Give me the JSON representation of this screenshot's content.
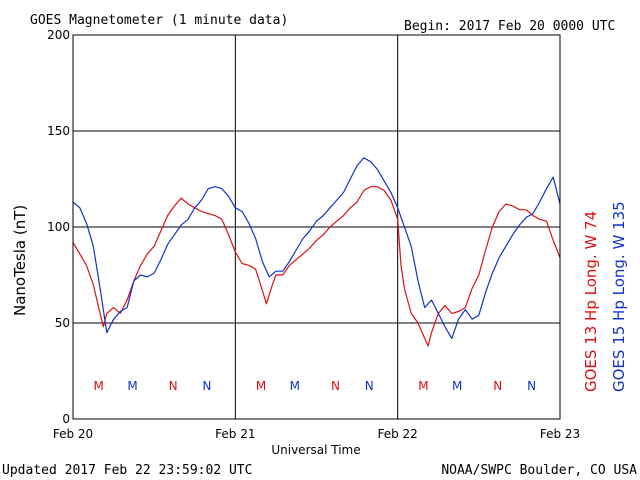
{
  "header": {
    "title": "GOES Magnetometer (1 minute data)",
    "begin": "Begin:  2017 Feb 20 0000 UTC"
  },
  "footer": {
    "updated": "Updated 2017 Feb 22 23:59:02 UTC",
    "credit": "NOAA/SWPC Boulder, CO USA"
  },
  "colors": {
    "goes13": "#dd1111",
    "goes15": "#1133cc",
    "grid": "#000000"
  },
  "chart_data": {
    "type": "line",
    "title": "GOES Magnetometer (1 minute data)",
    "xlabel": "Universal Time",
    "ylabel": "NanoTesla (nT)",
    "ylim": [
      0,
      200
    ],
    "xlim": [
      0,
      72
    ],
    "x_unit": "hours since 2017 Feb 20 0000 UTC",
    "x_ticks": [
      {
        "x": 0,
        "label": "Feb 20"
      },
      {
        "x": 24,
        "label": "Feb 21"
      },
      {
        "x": 48,
        "label": "Feb 22"
      },
      {
        "x": 72,
        "label": "Feb 23"
      }
    ],
    "y_ticks": [
      0,
      50,
      100,
      150,
      200
    ],
    "y_tick_labels": [
      "0",
      "50",
      "100",
      "150",
      "200"
    ],
    "grid": true,
    "legend_position": "right, vertical",
    "markers": [
      {
        "x": 3.8,
        "label": "M",
        "series": 0
      },
      {
        "x": 8.8,
        "label": "M",
        "series": 1
      },
      {
        "x": 14.8,
        "label": "N",
        "series": 0
      },
      {
        "x": 19.8,
        "label": "N",
        "series": 1
      },
      {
        "x": 27.8,
        "label": "M",
        "series": 0
      },
      {
        "x": 32.8,
        "label": "M",
        "series": 1
      },
      {
        "x": 38.8,
        "label": "N",
        "series": 0
      },
      {
        "x": 43.8,
        "label": "N",
        "series": 1
      },
      {
        "x": 51.8,
        "label": "M",
        "series": 0
      },
      {
        "x": 56.8,
        "label": "M",
        "series": 1
      },
      {
        "x": 62.8,
        "label": "N",
        "series": 0
      },
      {
        "x": 67.8,
        "label": "N",
        "series": 1
      }
    ],
    "series": [
      {
        "name": "GOES 13 Hp  Long. W 74",
        "color": "#dd1111",
        "points": [
          [
            0,
            92
          ],
          [
            1,
            86
          ],
          [
            2,
            80
          ],
          [
            3,
            70
          ],
          [
            3.8,
            58
          ],
          [
            4.5,
            48
          ],
          [
            5,
            55
          ],
          [
            6,
            58
          ],
          [
            7,
            55
          ],
          [
            8,
            62
          ],
          [
            9,
            72
          ],
          [
            10,
            80
          ],
          [
            11,
            86
          ],
          [
            12,
            90
          ],
          [
            13,
            98
          ],
          [
            14,
            106
          ],
          [
            15,
            111
          ],
          [
            16,
            115
          ],
          [
            17,
            112
          ],
          [
            18,
            110
          ],
          [
            19,
            108
          ],
          [
            20,
            107
          ],
          [
            21,
            106
          ],
          [
            22,
            104
          ],
          [
            23,
            96
          ],
          [
            24,
            87
          ],
          [
            25,
            81
          ],
          [
            26,
            80
          ],
          [
            27,
            78
          ],
          [
            28,
            67
          ],
          [
            28.6,
            60
          ],
          [
            29.5,
            70
          ],
          [
            30,
            75
          ],
          [
            31,
            75
          ],
          [
            32,
            80
          ],
          [
            33,
            83
          ],
          [
            34,
            86
          ],
          [
            35,
            89
          ],
          [
            36,
            93
          ],
          [
            37,
            96
          ],
          [
            38,
            100
          ],
          [
            39,
            103
          ],
          [
            40,
            106
          ],
          [
            41,
            110
          ],
          [
            42,
            113
          ],
          [
            43,
            119
          ],
          [
            44,
            121
          ],
          [
            45,
            121
          ],
          [
            46,
            119
          ],
          [
            47,
            114
          ],
          [
            48,
            104
          ],
          [
            48.5,
            80
          ],
          [
            49,
            68
          ],
          [
            50,
            55
          ],
          [
            51,
            50
          ],
          [
            52,
            42
          ],
          [
            52.5,
            38
          ],
          [
            53,
            45
          ],
          [
            54,
            55
          ],
          [
            55,
            59
          ],
          [
            56,
            55
          ],
          [
            57,
            56
          ],
          [
            58,
            58
          ],
          [
            59,
            68
          ],
          [
            60,
            75
          ],
          [
            61,
            88
          ],
          [
            62,
            100
          ],
          [
            63,
            108
          ],
          [
            64,
            112
          ],
          [
            65,
            111
          ],
          [
            66,
            109
          ],
          [
            67,
            109
          ],
          [
            68,
            106
          ],
          [
            69,
            104
          ],
          [
            70,
            103
          ],
          [
            71,
            93
          ],
          [
            72,
            84
          ]
        ]
      },
      {
        "name": "GOES 15 Hp  Long. W 135",
        "color": "#1133cc",
        "points": [
          [
            0,
            113
          ],
          [
            1,
            110
          ],
          [
            2,
            102
          ],
          [
            3,
            90
          ],
          [
            4,
            68
          ],
          [
            5,
            45
          ],
          [
            6,
            52
          ],
          [
            7,
            56
          ],
          [
            8,
            58
          ],
          [
            9,
            72
          ],
          [
            10,
            75
          ],
          [
            11,
            74
          ],
          [
            12,
            76
          ],
          [
            13,
            83
          ],
          [
            14,
            91
          ],
          [
            15,
            96
          ],
          [
            16,
            101
          ],
          [
            17,
            104
          ],
          [
            18,
            110
          ],
          [
            19,
            114
          ],
          [
            20,
            120
          ],
          [
            21,
            121
          ],
          [
            22,
            120
          ],
          [
            23,
            116
          ],
          [
            24,
            110
          ],
          [
            25,
            108
          ],
          [
            26,
            102
          ],
          [
            27,
            94
          ],
          [
            28,
            82
          ],
          [
            29,
            74
          ],
          [
            30,
            77
          ],
          [
            31,
            77
          ],
          [
            32,
            82
          ],
          [
            33,
            88
          ],
          [
            34,
            94
          ],
          [
            35,
            98
          ],
          [
            36,
            103
          ],
          [
            37,
            106
          ],
          [
            38,
            110
          ],
          [
            39,
            114
          ],
          [
            40,
            118
          ],
          [
            41,
            125
          ],
          [
            42,
            132
          ],
          [
            43,
            136
          ],
          [
            44,
            134
          ],
          [
            45,
            130
          ],
          [
            46,
            124
          ],
          [
            47,
            118
          ],
          [
            48,
            110
          ],
          [
            49,
            100
          ],
          [
            50,
            90
          ],
          [
            51,
            72
          ],
          [
            52,
            58
          ],
          [
            53,
            62
          ],
          [
            54,
            55
          ],
          [
            55,
            48
          ],
          [
            56,
            42
          ],
          [
            57,
            52
          ],
          [
            58,
            57
          ],
          [
            59,
            52
          ],
          [
            60,
            54
          ],
          [
            61,
            66
          ],
          [
            62,
            76
          ],
          [
            63,
            84
          ],
          [
            64,
            90
          ],
          [
            65,
            96
          ],
          [
            66,
            101
          ],
          [
            67,
            105
          ],
          [
            68,
            107
          ],
          [
            69,
            113
          ],
          [
            70,
            120
          ],
          [
            71,
            126
          ],
          [
            72,
            112
          ]
        ]
      }
    ]
  }
}
